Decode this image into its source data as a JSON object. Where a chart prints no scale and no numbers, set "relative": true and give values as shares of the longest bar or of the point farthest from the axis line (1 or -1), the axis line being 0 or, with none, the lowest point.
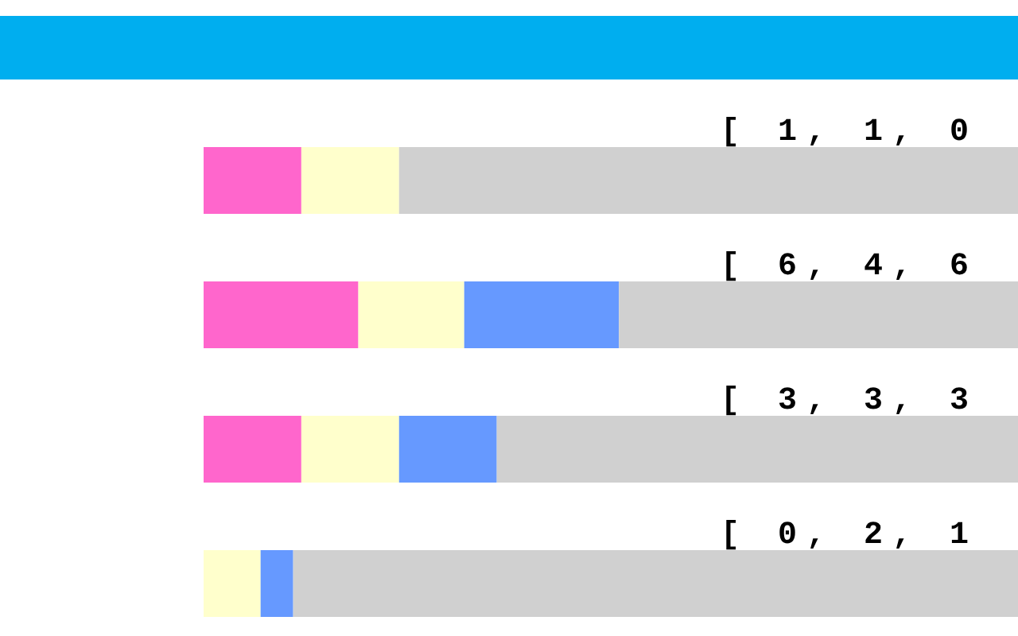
{
  "chart_data": {
    "type": "bar",
    "orientation": "horizontal",
    "stacked": true,
    "relative": true,
    "categories": [
      null,
      null,
      null,
      null
    ],
    "series": [
      {
        "color": "#ff66cc",
        "values": [
          0.12,
          0.19,
          0.12,
          0
        ]
      },
      {
        "color": "#ffffcc",
        "values": [
          0.12,
          0.13,
          0.12,
          0.07
        ]
      },
      {
        "color": "#6699ff",
        "values": [
          0,
          0.19,
          0.12,
          0.04
        ]
      },
      {
        "color": "#d0d0d0",
        "values": [
          0.76,
          0.49,
          0.64,
          0.89
        ]
      }
    ],
    "annotations": [
      "[ 1, 1, 0",
      "[ 6, 4, 6",
      "[ 3, 3, 3",
      "[ 0, 2, 1"
    ]
  }
}
